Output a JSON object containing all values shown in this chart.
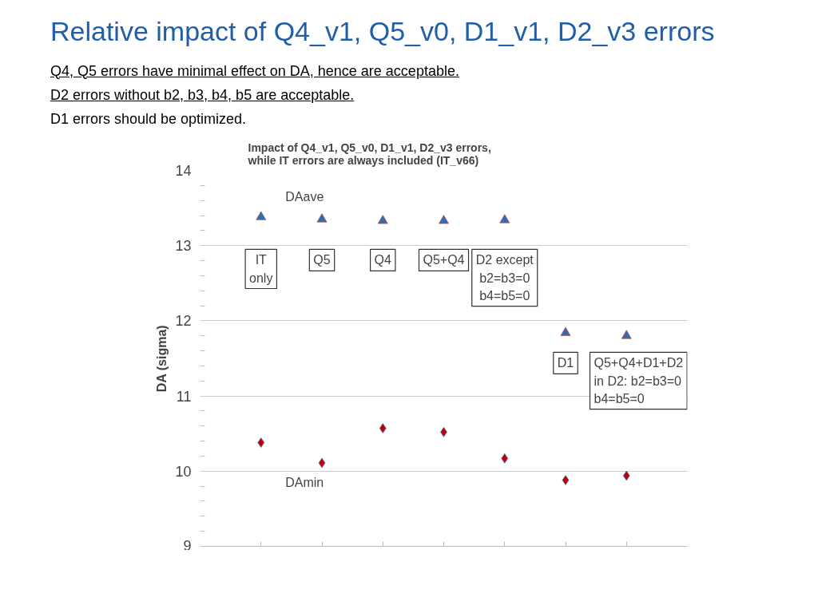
{
  "chart_data": {
    "type": "scatter",
    "title": "Relative impact of Q4_v1, Q5_v0, D1_v1, D2_v3 errors",
    "subtitle": "Impact of Q4_v1, Q5_v0, D1_v1, D2_v3 errors,\nwhile IT errors are always included (IT_v66)",
    "ylabel": "DA (sigma)",
    "categories": [
      null,
      null,
      null,
      null,
      null,
      null,
      null
    ],
    "series": [
      {
        "name": "DAave",
        "color": "#2e6db4",
        "marker": "triangle",
        "values": [
          13.38,
          13.35,
          13.33,
          13.33,
          13.34,
          11.84,
          11.8
        ]
      },
      {
        "name": "DAmin",
        "color": "#c00000",
        "marker": "diamond",
        "values": [
          10.38,
          10.11,
          10.57,
          10.52,
          10.17,
          9.88,
          9.94
        ]
      }
    ],
    "annotations": [
      "Q4, Q5 errors have minimal effect on DA, hence are acceptable.",
      "D2 errors without b2, b3, b4, b5 are acceptable.",
      "D1 errors should be optimized.",
      "IT\nonly",
      "Q5",
      "Q4",
      "Q5+Q4",
      "D2 except\nb2=b3=0\nb4=b5=0",
      "D1",
      "Q5+Q4+D1+D2\nin D2: b2=b3=0\nb4=b5=0"
    ],
    "ylim": [
      9,
      14
    ],
    "yticks": [
      9,
      {
        "value": 9.2,
        "label": null
      },
      {
        "value": 9.4,
        "label": null
      },
      {
        "value": 9.6,
        "label": null
      },
      {
        "value": 9.8,
        "label": null
      },
      10,
      {
        "value": 10.2,
        "label": null
      },
      {
        "value": 10.4,
        "label": null
      },
      {
        "value": 10.6,
        "label": null
      },
      {
        "value": 10.8,
        "label": null
      },
      11,
      {
        "value": 11.2,
        "label": null
      },
      {
        "value": 11.4,
        "label": null
      },
      {
        "value": 11.6,
        "label": null
      },
      {
        "value": 11.8,
        "label": null
      },
      12,
      {
        "value": 12.2,
        "label": null
      },
      {
        "value": 12.4,
        "label": null
      },
      {
        "value": 12.6,
        "label": null
      },
      {
        "value": 12.8,
        "label": null
      },
      13,
      {
        "value": 13.2,
        "label": null
      },
      {
        "value": 13.4,
        "label": null
      },
      {
        "value": 13.6,
        "label": null
      },
      {
        "value": 13.8,
        "label": null
      },
      14
    ],
    "grid": "y",
    "tick_labels": "y",
    "legend": false
  }
}
